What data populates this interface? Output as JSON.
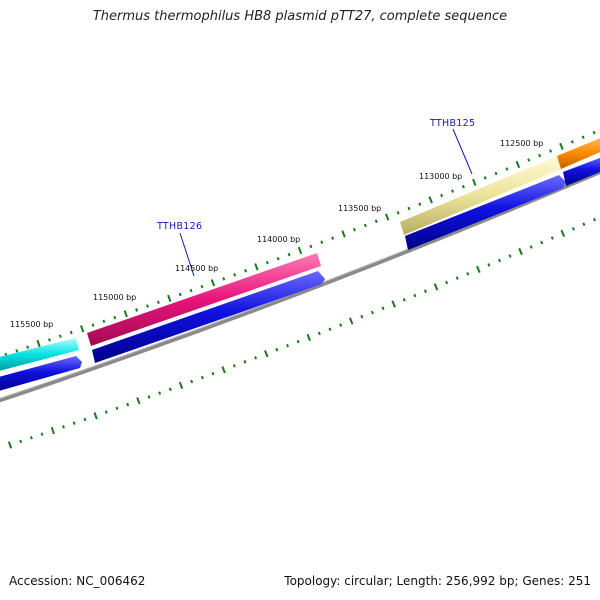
{
  "title": "Thermus thermophilus HB8 plasmid pTT27, complete sequence",
  "footer": {
    "accession": "Accession: NC_006462",
    "summary": "Topology: circular; Length: 256,992 bp; Genes: 251"
  },
  "colors": {
    "backbone": "#777777",
    "tick": "#1a7a1a",
    "cds": "#1010e0",
    "gene_label": "#1a1aa6"
  },
  "ticks": [
    {
      "label": "115500 bp"
    },
    {
      "label": "115000 bp"
    },
    {
      "label": "114500 bp"
    },
    {
      "label": "114000 bp"
    },
    {
      "label": "113500 bp"
    },
    {
      "label": "113000 bp"
    },
    {
      "label": "112500 bp"
    }
  ],
  "gene_labels": [
    {
      "name": "TTHB126"
    },
    {
      "name": "TTHB125"
    }
  ],
  "features": [
    {
      "type": "gene",
      "color": "#00e0e0"
    },
    {
      "type": "gene",
      "color": "#e8147a"
    },
    {
      "type": "gene",
      "color": "#e8e09a"
    },
    {
      "type": "gene",
      "color": "#ff8c00"
    }
  ]
}
